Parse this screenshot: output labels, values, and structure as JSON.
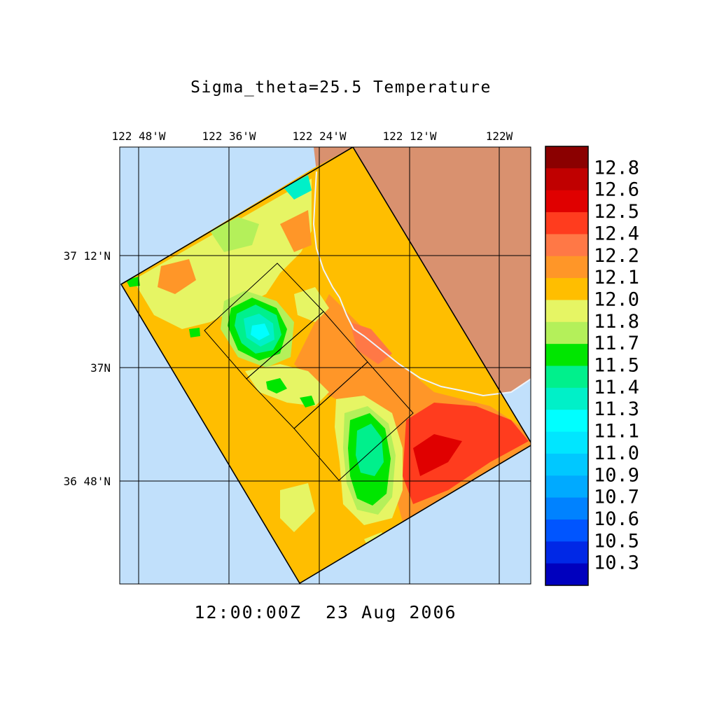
{
  "title": "Sigma_theta=25.5 Temperature",
  "timestamp": "12:00:00Z  23 Aug 2006",
  "lon_labels": [
    "122 48'W",
    "122 36'W",
    "122 24'W",
    "122 12'W",
    "122W"
  ],
  "lat_labels": [
    "37 12'N",
    "37N",
    "36 48'N"
  ],
  "colorbar": {
    "labels": [
      "12.8",
      "12.6",
      "12.5",
      "12.4",
      "12.2",
      "12.1",
      "12.0",
      "11.8",
      "11.7",
      "11.5",
      "11.4",
      "11.3",
      "11.1",
      "11.0",
      "10.9",
      "10.7",
      "10.6",
      "10.5",
      "10.3"
    ],
    "colors": [
      "#8b0000",
      "#c00000",
      "#e00000",
      "#ff3c1e",
      "#ff7846",
      "#ff9628",
      "#ffbe00",
      "#e6f564",
      "#b4f05a",
      "#00e600",
      "#00f08c",
      "#00f0c8",
      "#00ffff",
      "#00e6ff",
      "#00c8ff",
      "#00aaff",
      "#0082ff",
      "#0055ff",
      "#0028e6",
      "#0000be"
    ]
  },
  "colors": {
    "ocean": "#c1e0fb",
    "land": "#d9916f",
    "domain_fill": "#ffbe00"
  }
}
